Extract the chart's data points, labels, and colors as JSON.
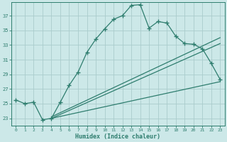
{
  "title": "",
  "xlabel": "Humidex (Indice chaleur)",
  "ylabel": "",
  "background_color": "#cce8e8",
  "grid_color": "#aacccc",
  "line_color": "#2e7d6e",
  "xlim": [
    -0.5,
    23.5
  ],
  "ylim": [
    22.0,
    38.8
  ],
  "xticks": [
    0,
    1,
    2,
    3,
    4,
    5,
    6,
    7,
    8,
    9,
    10,
    11,
    12,
    13,
    14,
    15,
    16,
    17,
    18,
    19,
    20,
    21,
    22,
    23
  ],
  "yticks": [
    23,
    25,
    27,
    29,
    31,
    33,
    35,
    37
  ],
  "series1_x": [
    0,
    1,
    2,
    3,
    4,
    5,
    6,
    7,
    8,
    9,
    10,
    11,
    12,
    13,
    14,
    15,
    16,
    17,
    18,
    19,
    20,
    21,
    22,
    23
  ],
  "series1_y": [
    25.5,
    25.0,
    25.2,
    22.8,
    23.0,
    25.2,
    27.5,
    29.3,
    32.0,
    33.8,
    35.2,
    36.5,
    37.0,
    38.4,
    38.5,
    35.3,
    36.2,
    36.0,
    34.2,
    33.2,
    33.1,
    32.5,
    30.5,
    28.3
  ],
  "line1_x": [
    4,
    23
  ],
  "line1_y": [
    23.0,
    28.0
  ],
  "line2_x": [
    4,
    23
  ],
  "line2_y": [
    23.0,
    33.2
  ],
  "line3_x": [
    4,
    23
  ],
  "line3_y": [
    23.2,
    34.0
  ]
}
